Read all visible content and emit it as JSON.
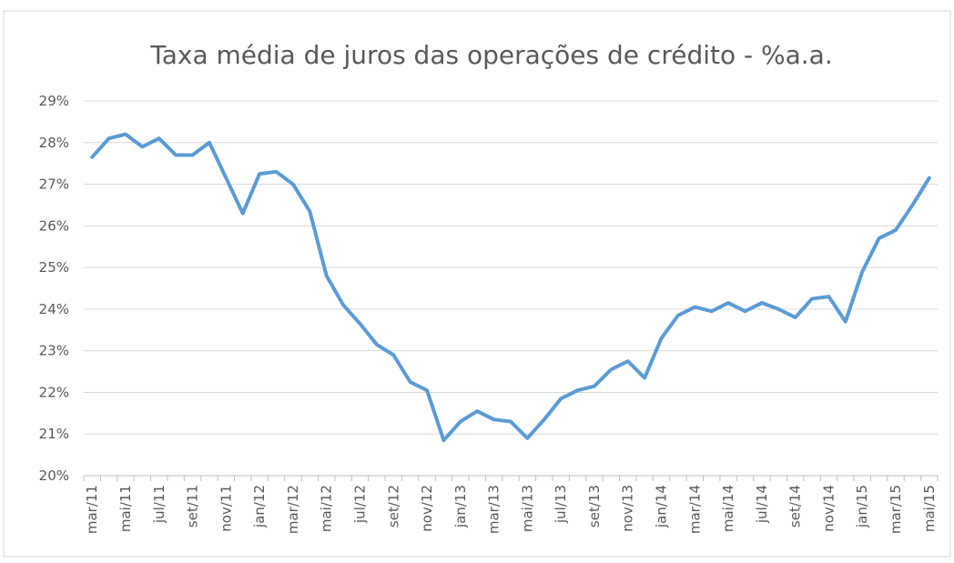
{
  "chart_data": {
    "type": "line",
    "title": "Taxa média de juros das operações de crédito - %a.a.",
    "categories": [
      "mar/11",
      null,
      "mai/11",
      null,
      "jul/11",
      null,
      "set/11",
      null,
      "nov/11",
      null,
      "jan/12",
      null,
      "mar/12",
      null,
      "mai/12",
      null,
      "jul/12",
      null,
      "set/12",
      null,
      "nov/12",
      null,
      "jan/13",
      null,
      "mar/13",
      null,
      "mai/13",
      null,
      "jul/13",
      null,
      "set/13",
      null,
      "nov/13",
      null,
      "jan/14",
      null,
      "mar/14",
      null,
      "mai/14",
      null,
      "jul/14",
      null,
      "set/14",
      null,
      "nov/14",
      null,
      "jan/15",
      null,
      "mar/15",
      null,
      "mai/15"
    ],
    "series": [
      {
        "color": "#5b9bd5",
        "values": [
          27.65,
          28.1,
          28.2,
          27.9,
          28.1,
          27.7,
          27.7,
          28.0,
          27.15,
          26.3,
          27.25,
          27.3,
          27.0,
          26.35,
          24.8,
          24.1,
          23.65,
          23.15,
          22.9,
          22.25,
          22.05,
          20.85,
          21.3,
          21.55,
          21.35,
          21.3,
          20.9,
          21.35,
          21.85,
          22.05,
          22.15,
          22.55,
          22.75,
          22.35,
          23.3,
          23.85,
          24.05,
          23.95,
          24.15,
          23.95,
          24.15,
          24.0,
          23.8,
          24.25,
          24.3,
          23.7,
          24.9,
          25.7,
          25.9,
          26.5,
          27.15
        ]
      }
    ],
    "ylim": [
      20,
      29
    ],
    "yticks": [
      {
        "value": 20,
        "label": "20%"
      },
      {
        "value": 21,
        "label": "21%"
      },
      {
        "value": 22,
        "label": "22%"
      },
      {
        "value": 23,
        "label": "23%"
      },
      {
        "value": 24,
        "label": "24%"
      },
      {
        "value": 25,
        "label": "25%"
      },
      {
        "value": 26,
        "label": "26%"
      },
      {
        "value": 27,
        "label": "27%"
      },
      {
        "value": 28,
        "label": "28%"
      },
      {
        "value": 29,
        "label": "29%"
      }
    ],
    "grid": true
  }
}
